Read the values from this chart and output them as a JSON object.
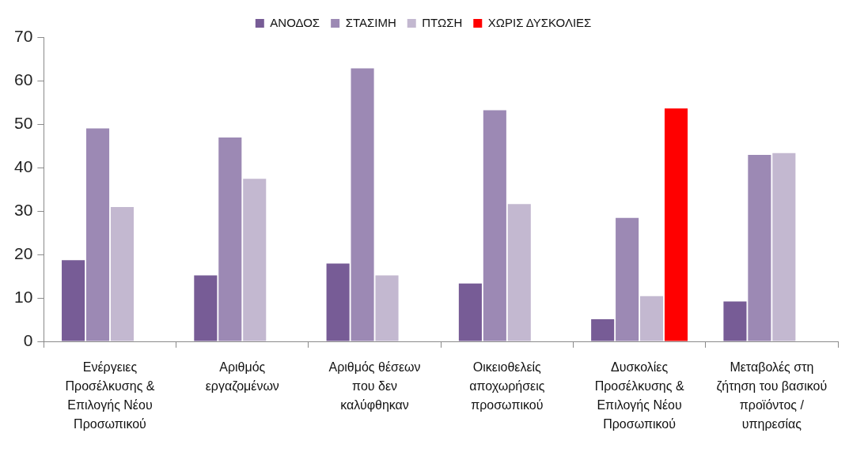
{
  "chart_data": {
    "type": "bar",
    "categories": [
      "Ενέργειες\nΠροσέλκυσης &\nΕπιλογής Νέου\nΠροσωπικού",
      "Αριθμός\nεργαζομένων",
      "Αριθμός θέσεων\nπου δεν\nκαλύφθηκαν",
      "Οικειοθελείς\nαποχωρήσεις\nπροσωπικού",
      "Δυσκολίες\nΠροσέλκυσης &\nΕπιλογής Νέου\nΠροσωπικού",
      "Μεταβολές στη\nζήτηση του βασικού\nπροϊόντος /\nυπηρεσίας"
    ],
    "series": [
      {
        "name": "ΑΝΟΔΟΣ",
        "color": "#775c96",
        "values": [
          18.7,
          15.2,
          17.9,
          13.3,
          5.1,
          9.2
        ]
      },
      {
        "name": "ΣΤΑΣΙΜΗ",
        "color": "#9c89b4",
        "values": [
          49.0,
          46.9,
          62.8,
          53.2,
          28.4,
          42.9
        ]
      },
      {
        "name": "ΠΤΩΣΗ",
        "color": "#c3b8d0",
        "values": [
          30.9,
          37.4,
          15.2,
          31.6,
          10.4,
          43.3
        ]
      },
      {
        "name": "ΧΩΡΙΣ ΔΥΣΚΟΛΙΕΣ",
        "color": "#ff0000",
        "values": [
          null,
          null,
          null,
          null,
          53.6,
          null
        ]
      }
    ],
    "ylim": [
      0,
      70
    ],
    "yticks": [
      0,
      10,
      20,
      30,
      40,
      50,
      60,
      70
    ],
    "legend": "top"
  }
}
